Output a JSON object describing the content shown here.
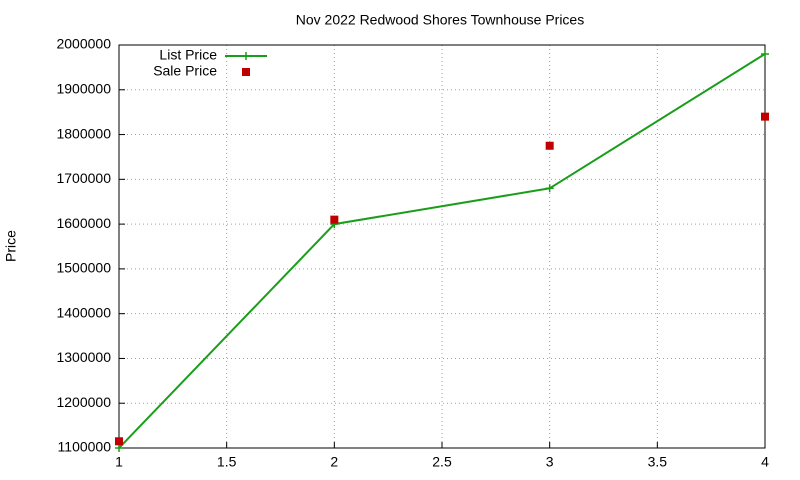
{
  "chart_data": {
    "type": "line",
    "title": "Nov 2022 Redwood Shores Townhouse Prices",
    "ylabel": "Price",
    "x": [
      1,
      2,
      3,
      4
    ],
    "series": [
      {
        "name": "List Price",
        "color": "#1a9e1a",
        "mode": "lines+markers",
        "values": [
          1100000,
          1600000,
          1680000,
          1980000
        ]
      },
      {
        "name": "Sale Price",
        "color": "#c00000",
        "mode": "markers",
        "values": [
          1115000,
          1610000,
          1775000,
          1840000
        ]
      }
    ],
    "xlim": [
      1,
      4
    ],
    "xticks": [
      1,
      1.5,
      2,
      2.5,
      3,
      3.5,
      4
    ],
    "ylim": [
      1100000,
      2000000
    ],
    "yticks": [
      1100000,
      1200000,
      1300000,
      1400000,
      1500000,
      1600000,
      1700000,
      1800000,
      1900000,
      2000000
    ],
    "grid": true,
    "legend": "top-left"
  }
}
